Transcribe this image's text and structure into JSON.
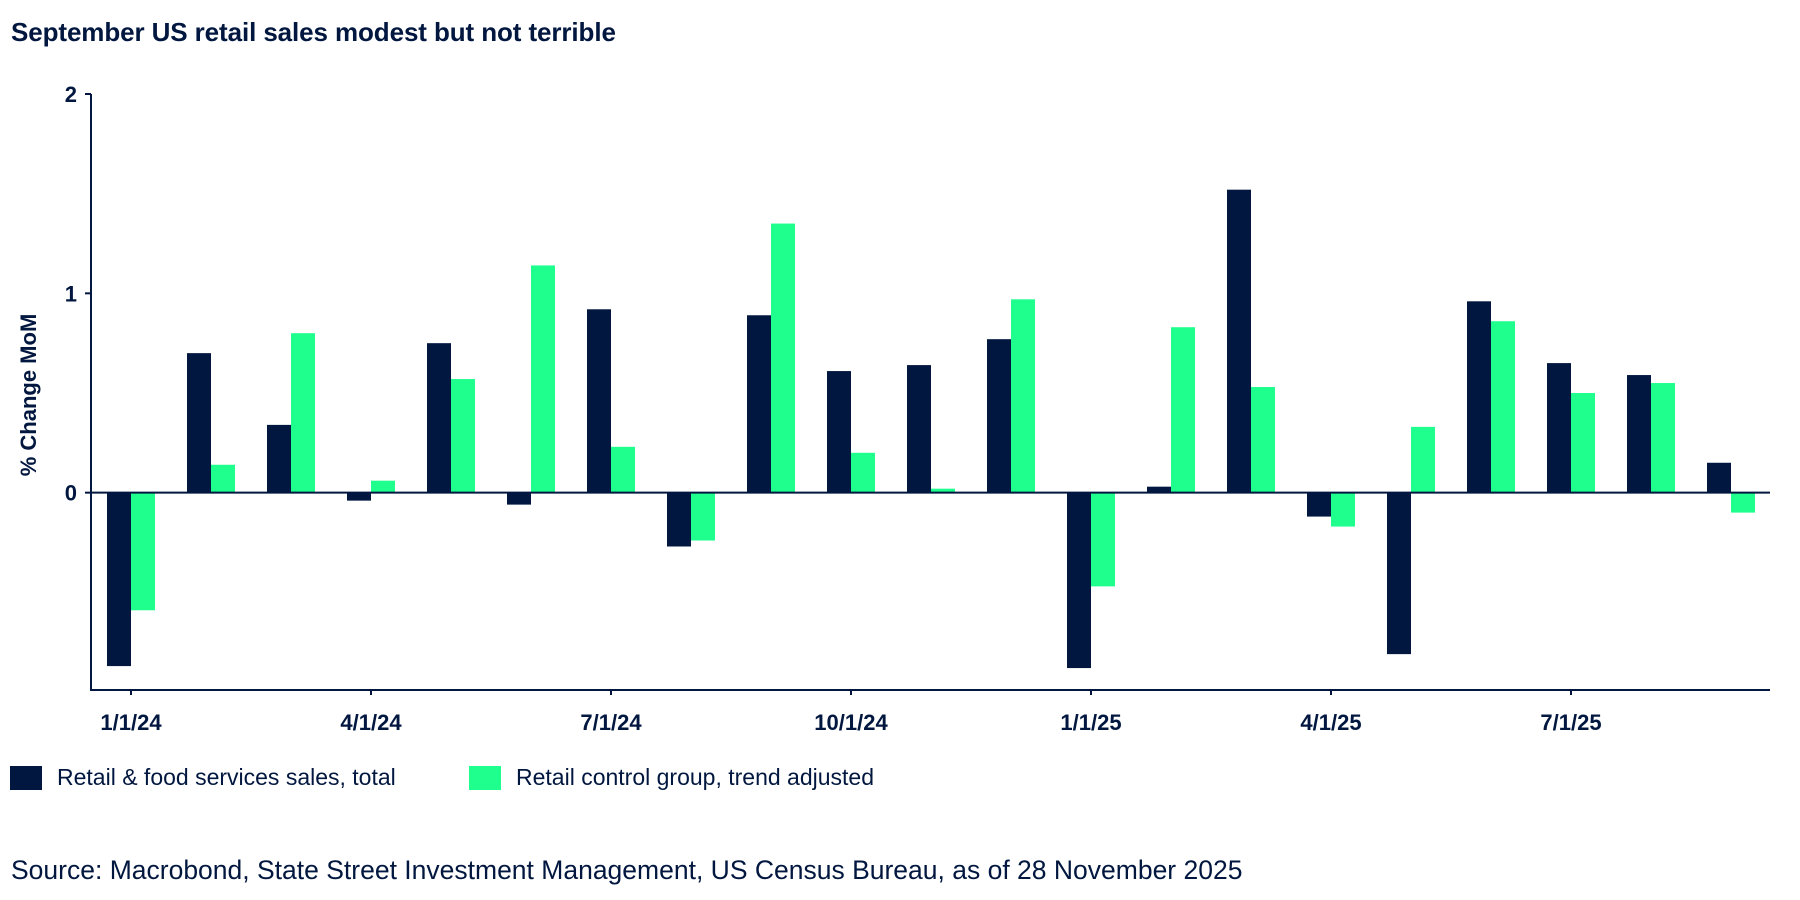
{
  "title": "September US retail sales modest but not terrible",
  "source": "Source: Macrobond, State Street Investment Management, US Census Bureau, as of 28 November 2025",
  "colors": {
    "navy": "#02173f",
    "green": "#1eff8e",
    "text": "#02173f"
  },
  "chart_data": {
    "type": "bar",
    "title": "September US retail sales modest but not terrible",
    "xlabel": "",
    "ylabel": "% Change MoM",
    "ylim": [
      -0.99,
      2
    ],
    "yticks": [
      0,
      1,
      2
    ],
    "ytick_labels": [
      "0",
      "1",
      "2"
    ],
    "grid": false,
    "legend_position": "bottom-left",
    "categories": [
      "2024-01",
      "2024-02",
      "2024-03",
      "2024-04",
      "2024-05",
      "2024-06",
      "2024-07",
      "2024-08",
      "2024-09",
      "2024-10",
      "2024-11",
      "2024-12",
      "2025-01",
      "2025-02",
      "2025-03",
      "2025-04",
      "2025-05",
      "2025-06",
      "2025-07",
      "2025-08",
      "2025-09"
    ],
    "xtick_labels": [
      {
        "index": 0,
        "label": "1/1/24"
      },
      {
        "index": 3,
        "label": "4/1/24"
      },
      {
        "index": 6,
        "label": "7/1/24"
      },
      {
        "index": 9,
        "label": "10/1/24"
      },
      {
        "index": 12,
        "label": "1/1/25"
      },
      {
        "index": 15,
        "label": "4/1/25"
      },
      {
        "index": 18,
        "label": "7/1/25"
      }
    ],
    "series": [
      {
        "name": "Retail & food services sales, total",
        "color": "#02173f",
        "values": [
          -0.87,
          0.7,
          0.34,
          -0.04,
          0.75,
          -0.06,
          0.92,
          -0.27,
          0.89,
          0.61,
          0.64,
          0.77,
          -0.88,
          0.03,
          1.52,
          -0.12,
          -0.81,
          0.96,
          0.65,
          0.59,
          0.15
        ]
      },
      {
        "name": "Retail control group, trend adjusted",
        "color": "#1eff8e",
        "values": [
          -0.59,
          0.14,
          0.8,
          0.06,
          0.57,
          1.14,
          0.23,
          -0.24,
          1.35,
          0.2,
          0.02,
          0.97,
          -0.47,
          0.83,
          0.53,
          -0.17,
          0.33,
          0.86,
          0.5,
          0.55,
          -0.1
        ]
      }
    ]
  },
  "legend": [
    {
      "label": "Retail & food services sales, total",
      "color": "#02173f"
    },
    {
      "label": "Retail control group, trend adjusted",
      "color": "#1eff8e"
    }
  ]
}
